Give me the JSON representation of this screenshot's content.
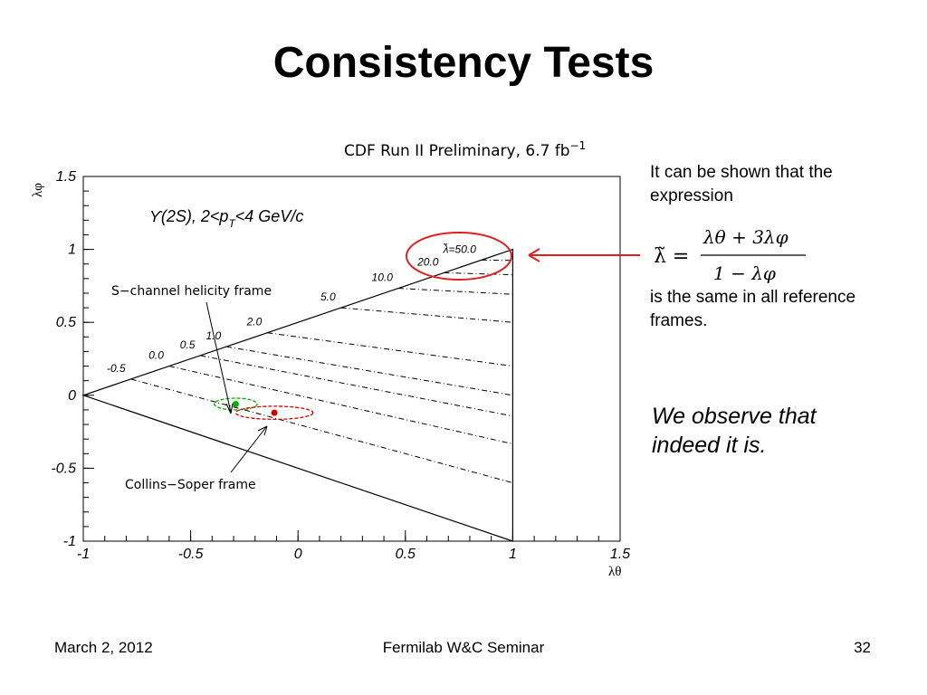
{
  "slide": {
    "title": "Consistency Tests",
    "intro_text": "It can be shown that the expression",
    "formula": {
      "lhs": "λ̃ =",
      "numerator": "λθ + 3λφ",
      "denominator": "1 − λφ"
    },
    "tail_text": "is the same in all reference frames.",
    "conclusion": "We observe that indeed it is.",
    "footer": {
      "date": "March 2, 2012",
      "event": "Fermilab W&C Seminar",
      "page": "32"
    }
  },
  "chart_data": {
    "type": "scatter",
    "title": "CDF Run II Preliminary, 6.7 fb",
    "title_superscript": "−1",
    "subtitle": "ϒ(2S), 2<p",
    "subtitle_sub": "T",
    "subtitle_tail": "<4 GeV/c",
    "xlabel": "λθ",
    "ylabel": "λφ",
    "xlim": [
      -1,
      1.5
    ],
    "ylim": [
      -1,
      1.5
    ],
    "xticks": [
      -1,
      -0.5,
      0,
      0.5,
      1,
      1.5
    ],
    "xtick_labels": [
      "-1",
      "-0.5",
      "0",
      "0.5",
      "1",
      "1.5"
    ],
    "yticks": [
      -1,
      -0.5,
      0,
      0.5,
      1,
      1.5
    ],
    "ytick_labels": [
      "-1",
      "-0.5",
      "0",
      "0.5",
      "1",
      "1.5"
    ],
    "allowed_region": [
      [
        -1,
        0
      ],
      [
        1,
        1
      ],
      [
        1,
        -1
      ]
    ],
    "contours": [
      {
        "label": "-0.5",
        "value": -0.5
      },
      {
        "label": "0.0",
        "value": 0.0
      },
      {
        "label": "0.5",
        "value": 0.5
      },
      {
        "label": "1.0",
        "value": 1.0
      },
      {
        "label": "2.0",
        "value": 2.0
      },
      {
        "label": "5.0",
        "value": 5.0
      },
      {
        "label": "10.0",
        "value": 10.0
      },
      {
        "label": "20.0",
        "value": 20.0
      },
      {
        "label": "λ̃=50.0",
        "value": 50.0
      }
    ],
    "points": [
      {
        "name": "S-channel helicity frame",
        "x": -0.29,
        "y": -0.06,
        "color": "#00b000",
        "ellipse_rx": 0.1,
        "ellipse_ry": 0.04
      },
      {
        "name": "Collins-Soper frame",
        "x": -0.11,
        "y": -0.12,
        "color": "#d00000",
        "ellipse_rx": 0.18,
        "ellipse_ry": 0.045
      }
    ],
    "annotations": [
      {
        "text": "S−channel helicity frame"
      },
      {
        "text": "Collins−Soper frame"
      }
    ],
    "highlight_color": "#e02020"
  }
}
